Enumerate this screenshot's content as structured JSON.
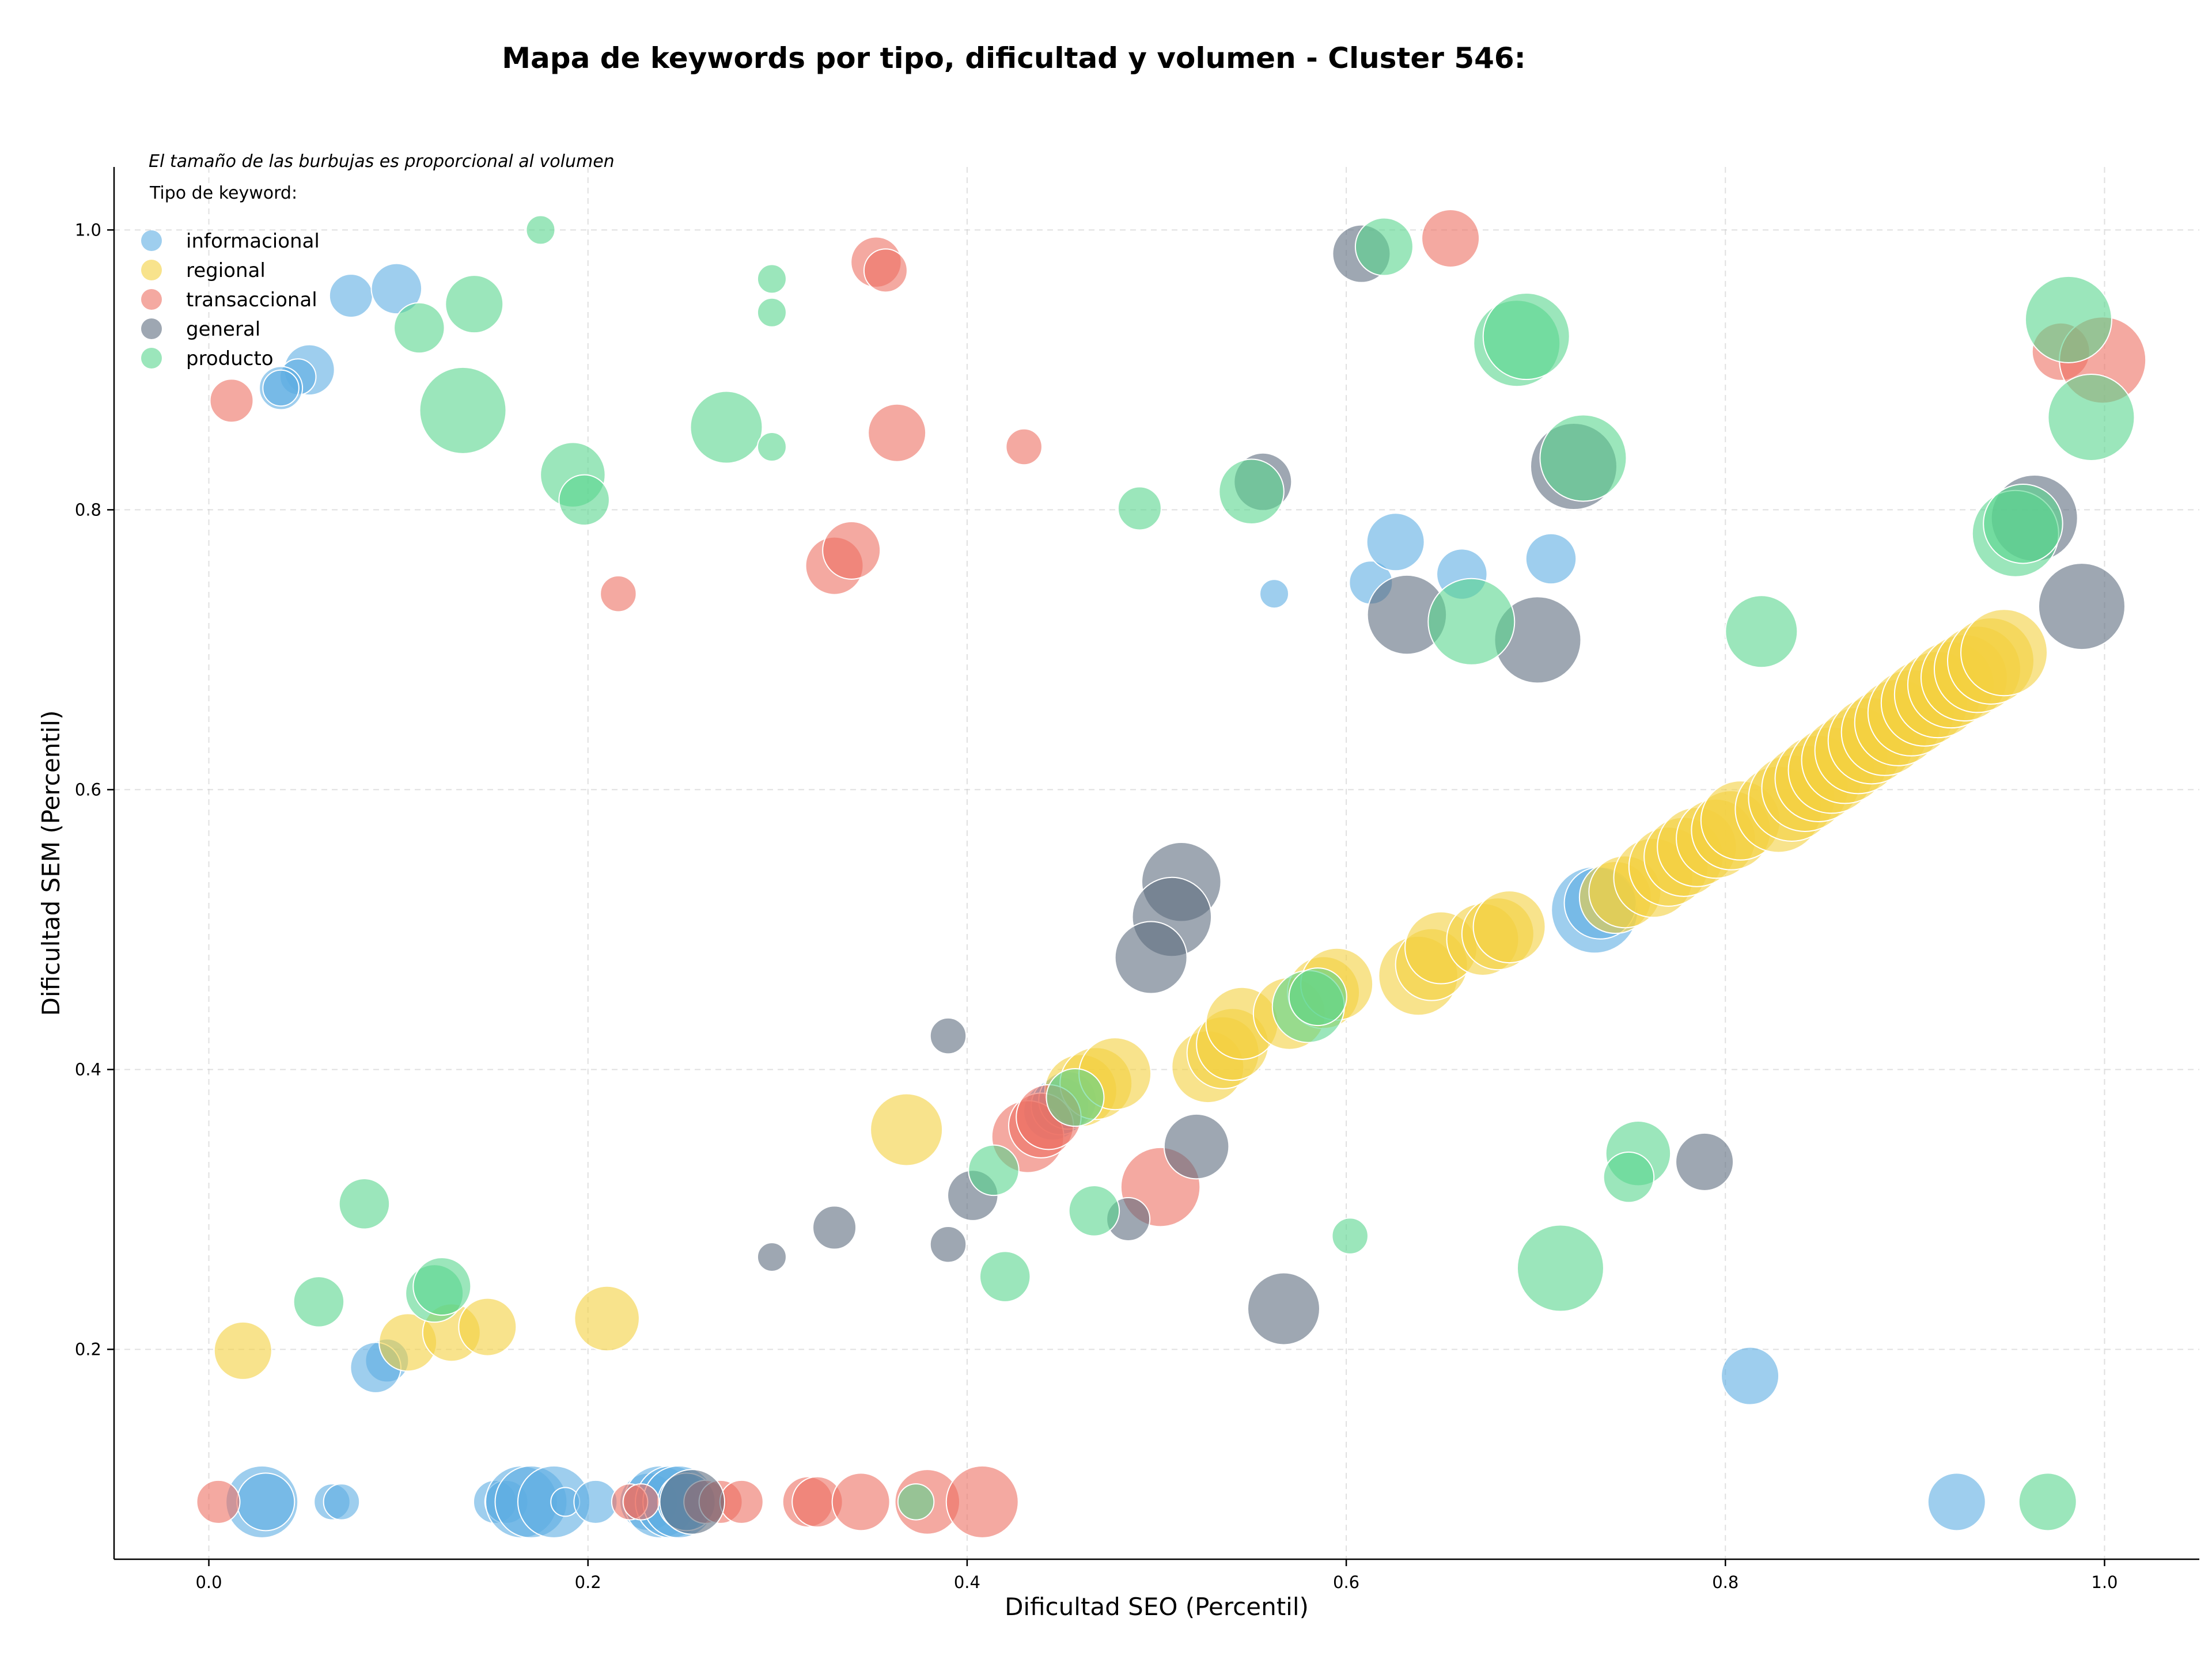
{
  "chart_data": {
    "type": "scatter",
    "title": "Mapa de keywords por tipo, dificultad y volumen - Cluster 546:",
    "xlabel": "Dificultad SEO (Percentil)",
    "ylabel": "Dificultad SEM (Percentil)",
    "xlim": [
      -0.05,
      1.05
    ],
    "ylim": [
      0.05,
      1.045
    ],
    "xticks": [
      "0.0",
      "0.2",
      "0.4",
      "0.6",
      "0.8",
      "1.0"
    ],
    "yticks": [
      "0.2",
      "0.4",
      "0.6",
      "0.8",
      "1.0"
    ],
    "grid": true,
    "note": "El tamaño de las burbujas es proporcional al volumen",
    "legend": {
      "title": "Tipo de keyword:",
      "placement": "top-left"
    },
    "series": [
      {
        "name": "informacional",
        "color": "#5dade2",
        "points": [
          [
            0.075,
            0.953,
            3
          ],
          [
            0.099,
            0.958,
            3.5
          ],
          [
            0.053,
            0.9,
            3.5
          ],
          [
            0.047,
            0.895,
            2.5
          ],
          [
            0.038,
            0.887,
            3
          ],
          [
            0.038,
            0.887,
            2.5
          ],
          [
            0.094,
            0.192,
            3
          ],
          [
            0.088,
            0.187,
            3.5
          ],
          [
            0.028,
            0.091,
            5
          ],
          [
            0.03,
            0.091,
            4
          ],
          [
            0.065,
            0.091,
            2.5
          ],
          [
            0.07,
            0.091,
            2.5
          ],
          [
            0.151,
            0.091,
            3
          ],
          [
            0.157,
            0.091,
            3
          ],
          [
            0.165,
            0.091,
            5
          ],
          [
            0.17,
            0.091,
            5
          ],
          [
            0.182,
            0.091,
            5
          ],
          [
            0.188,
            0.091,
            2
          ],
          [
            0.204,
            0.091,
            3
          ],
          [
            0.232,
            0.091,
            4
          ],
          [
            0.238,
            0.091,
            5
          ],
          [
            0.244,
            0.091,
            5
          ],
          [
            0.248,
            0.091,
            5
          ],
          [
            0.252,
            0.091,
            4
          ],
          [
            0.562,
            0.74,
            2
          ],
          [
            0.613,
            0.748,
            3
          ],
          [
            0.626,
            0.777,
            4
          ],
          [
            0.661,
            0.754,
            3.5
          ],
          [
            0.708,
            0.765,
            3.5
          ],
          [
            0.731,
            0.514,
            6
          ],
          [
            0.734,
            0.519,
            5
          ],
          [
            0.813,
            0.181,
            4
          ],
          [
            0.922,
            0.091,
            4
          ],
          [
            0.445,
            0.37,
            4
          ],
          [
            0.449,
            0.374,
            4
          ],
          [
            0.453,
            0.378,
            4
          ]
        ]
      },
      {
        "name": "regional",
        "color": "#f4d03f",
        "points": [
          [
            0.018,
            0.199,
            4
          ],
          [
            0.105,
            0.205,
            4
          ],
          [
            0.128,
            0.212,
            4
          ],
          [
            0.147,
            0.216,
            4
          ],
          [
            0.21,
            0.222,
            4.5
          ],
          [
            0.368,
            0.357,
            5
          ],
          [
            0.46,
            0.385,
            5
          ],
          [
            0.468,
            0.39,
            5
          ],
          [
            0.478,
            0.397,
            5
          ],
          [
            0.527,
            0.402,
            5
          ],
          [
            0.535,
            0.412,
            5
          ],
          [
            0.54,
            0.418,
            5
          ],
          [
            0.545,
            0.433,
            5
          ],
          [
            0.57,
            0.44,
            5
          ],
          [
            0.588,
            0.455,
            5
          ],
          [
            0.595,
            0.461,
            5
          ],
          [
            0.638,
            0.467,
            5.5
          ],
          [
            0.645,
            0.475,
            5
          ],
          [
            0.65,
            0.487,
            5
          ],
          [
            0.672,
            0.493,
            5
          ],
          [
            0.68,
            0.497,
            5
          ],
          [
            0.686,
            0.502,
            5
          ],
          [
            0.742,
            0.523,
            5
          ],
          [
            0.747,
            0.527,
            5
          ],
          [
            0.762,
            0.537,
            5.5
          ],
          [
            0.77,
            0.545,
            5.5
          ],
          [
            0.778,
            0.552,
            5.5
          ],
          [
            0.785,
            0.559,
            5.5
          ],
          [
            0.795,
            0.565,
            5.5
          ],
          [
            0.803,
            0.571,
            5.5
          ],
          [
            0.808,
            0.578,
            5.5
          ],
          [
            0.828,
            0.586,
            6
          ],
          [
            0.835,
            0.594,
            6
          ],
          [
            0.842,
            0.601,
            6
          ],
          [
            0.849,
            0.608,
            6
          ],
          [
            0.856,
            0.614,
            6
          ],
          [
            0.863,
            0.621,
            6
          ],
          [
            0.87,
            0.628,
            6
          ],
          [
            0.877,
            0.635,
            6
          ],
          [
            0.884,
            0.641,
            6
          ],
          [
            0.891,
            0.648,
            6
          ],
          [
            0.898,
            0.655,
            6
          ],
          [
            0.905,
            0.662,
            6
          ],
          [
            0.912,
            0.668,
            6
          ],
          [
            0.919,
            0.675,
            6
          ],
          [
            0.926,
            0.68,
            6
          ],
          [
            0.933,
            0.686,
            6
          ],
          [
            0.94,
            0.692,
            6
          ],
          [
            0.947,
            0.698,
            6
          ]
        ]
      },
      {
        "name": "transaccional",
        "color": "#ec7063",
        "points": [
          [
            0.012,
            0.878,
            3
          ],
          [
            0.216,
            0.74,
            2.5
          ],
          [
            0.352,
            0.977,
            3.5
          ],
          [
            0.357,
            0.971,
            3
          ],
          [
            0.363,
            0.855,
            4
          ],
          [
            0.33,
            0.76,
            4
          ],
          [
            0.339,
            0.771,
            4
          ],
          [
            0.43,
            0.845,
            2.5
          ],
          [
            0.655,
            0.994,
            4
          ],
          [
            0.977,
            0.913,
            4
          ],
          [
            0.999,
            0.907,
            6
          ],
          [
            0.432,
            0.352,
            5
          ],
          [
            0.439,
            0.36,
            4.5
          ],
          [
            0.443,
            0.366,
            4.5
          ],
          [
            0.502,
            0.316,
            5.5
          ],
          [
            0.005,
            0.091,
            3
          ],
          [
            0.222,
            0.091,
            2.5
          ],
          [
            0.228,
            0.091,
            2.5
          ],
          [
            0.262,
            0.091,
            3
          ],
          [
            0.27,
            0.091,
            3
          ],
          [
            0.281,
            0.091,
            3
          ],
          [
            0.316,
            0.091,
            3.5
          ],
          [
            0.321,
            0.091,
            3.5
          ],
          [
            0.344,
            0.091,
            4
          ],
          [
            0.379,
            0.091,
            4.5
          ],
          [
            0.408,
            0.091,
            5
          ]
        ]
      },
      {
        "name": "general",
        "color": "#5d6d7e",
        "points": [
          [
            0.608,
            0.983,
            4
          ],
          [
            0.556,
            0.82,
            4
          ],
          [
            0.72,
            0.831,
            6
          ],
          [
            0.963,
            0.794,
            6
          ],
          [
            0.988,
            0.731,
            6
          ],
          [
            0.632,
            0.725,
            5.5
          ],
          [
            0.701,
            0.707,
            6
          ],
          [
            0.513,
            0.534,
            5.5
          ],
          [
            0.508,
            0.509,
            5.5
          ],
          [
            0.497,
            0.48,
            5
          ],
          [
            0.39,
            0.424,
            2.5
          ],
          [
            0.521,
            0.345,
            4.5
          ],
          [
            0.403,
            0.31,
            3.5
          ],
          [
            0.33,
            0.287,
            3
          ],
          [
            0.297,
            0.266,
            2
          ],
          [
            0.39,
            0.275,
            2.5
          ],
          [
            0.485,
            0.293,
            3
          ],
          [
            0.567,
            0.229,
            5
          ],
          [
            0.789,
            0.334,
            4
          ],
          [
            0.255,
            0.091,
            4.5
          ]
        ]
      },
      {
        "name": "producto",
        "color": "#58d68d",
        "points": [
          [
            0.175,
            1.0,
            2
          ],
          [
            0.14,
            0.947,
            4
          ],
          [
            0.111,
            0.93,
            3.5
          ],
          [
            0.134,
            0.871,
            6
          ],
          [
            0.192,
            0.825,
            4.5
          ],
          [
            0.198,
            0.807,
            3.5
          ],
          [
            0.273,
            0.859,
            5
          ],
          [
            0.297,
            0.965,
            2
          ],
          [
            0.297,
            0.941,
            2
          ],
          [
            0.297,
            0.845,
            2
          ],
          [
            0.491,
            0.801,
            3
          ],
          [
            0.55,
            0.813,
            4.5
          ],
          [
            0.62,
            0.988,
            4
          ],
          [
            0.69,
            0.919,
            6
          ],
          [
            0.695,
            0.924,
            6
          ],
          [
            0.725,
            0.837,
            6
          ],
          [
            0.666,
            0.72,
            6
          ],
          [
            0.819,
            0.713,
            5
          ],
          [
            0.953,
            0.783,
            6
          ],
          [
            0.957,
            0.79,
            5.5
          ],
          [
            0.981,
            0.936,
            6
          ],
          [
            0.993,
            0.866,
            6
          ],
          [
            0.58,
            0.445,
            5
          ],
          [
            0.585,
            0.452,
            4
          ],
          [
            0.457,
            0.38,
            4
          ],
          [
            0.414,
            0.328,
            3.5
          ],
          [
            0.42,
            0.252,
            3.5
          ],
          [
            0.467,
            0.299,
            3.5
          ],
          [
            0.602,
            0.281,
            2.5
          ],
          [
            0.713,
            0.258,
            6
          ],
          [
            0.754,
            0.34,
            4.5
          ],
          [
            0.749,
            0.323,
            3.5
          ],
          [
            0.082,
            0.304,
            3.5
          ],
          [
            0.058,
            0.234,
            3.5
          ],
          [
            0.119,
            0.24,
            4
          ],
          [
            0.123,
            0.245,
            4
          ],
          [
            0.373,
            0.091,
            2.5
          ],
          [
            0.97,
            0.091,
            4
          ]
        ]
      }
    ]
  }
}
